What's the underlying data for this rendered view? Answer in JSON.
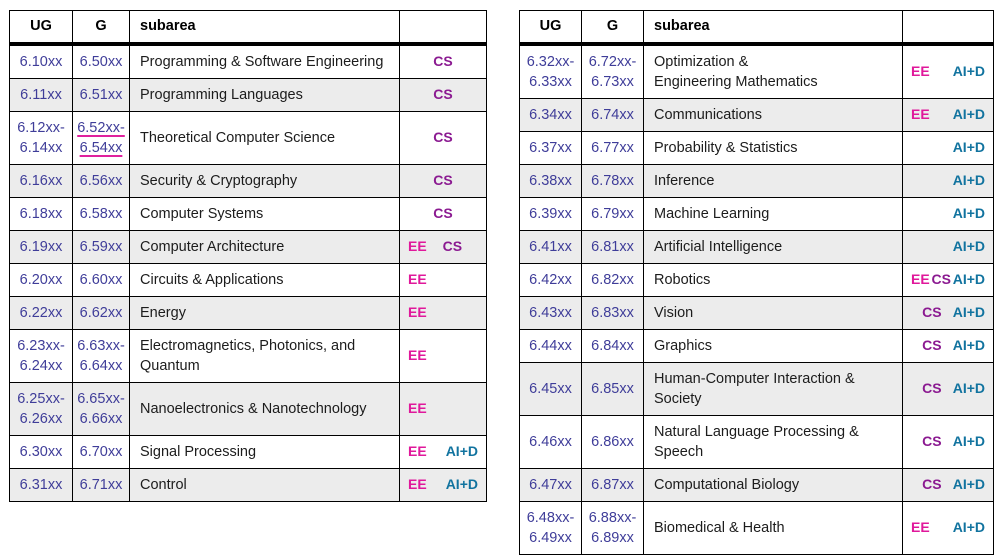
{
  "colors": {
    "number": "#3f3d99",
    "ee": "#e0189b",
    "cs": "#8b1a91",
    "aid": "#11739f",
    "row_alt": "#ececec",
    "border": "#000000",
    "text": "#1c1c1c",
    "link_underline": "#e0219e"
  },
  "tag_labels": {
    "ee": "EE",
    "cs": "CS",
    "aid": "AI+D"
  },
  "tables": [
    {
      "id": "left",
      "headers": {
        "ug": "UG",
        "g": "G",
        "subarea": "subarea",
        "tags": ""
      },
      "rows": [
        {
          "ug": "6.10xx",
          "g": "6.50xx",
          "subarea": "Programming & Software Engineering",
          "tags": [
            "CS"
          ]
        },
        {
          "ug": "6.11xx",
          "g": "6.51xx",
          "subarea": "Programming Languages",
          "tags": [
            "CS"
          ]
        },
        {
          "ug": "6.12xx-\n6.14xx",
          "g": "6.52xx-\n6.54xx",
          "g_link": true,
          "subarea": "Theoretical Computer Science",
          "tags": [
            "CS"
          ]
        },
        {
          "ug": "6.16xx",
          "g": "6.56xx",
          "subarea": "Security & Cryptography",
          "tags": [
            "CS"
          ]
        },
        {
          "ug": "6.18xx",
          "g": "6.58xx",
          "subarea": "Computer Systems",
          "tags": [
            "CS"
          ]
        },
        {
          "ug": "6.19xx",
          "g": "6.59xx",
          "subarea": "Computer Architecture",
          "tags": [
            "EE",
            "CS"
          ]
        },
        {
          "ug": "6.20xx",
          "g": "6.60xx",
          "subarea": "Circuits & Applications",
          "tags": [
            "EE"
          ]
        },
        {
          "ug": "6.22xx",
          "g": "6.62xx",
          "subarea": "Energy",
          "tags": [
            "EE"
          ]
        },
        {
          "ug": "6.23xx-\n6.24xx",
          "g": "6.63xx-\n6.64xx",
          "subarea": "Electromagnetics, Photonics, and Quantum",
          "tags": [
            "EE"
          ]
        },
        {
          "ug": "6.25xx-\n6.26xx",
          "g": "6.65xx-\n6.66xx",
          "subarea": "Nanoelectronics & Nanotechnology",
          "tags": [
            "EE"
          ]
        },
        {
          "ug": "6.30xx",
          "g": "6.70xx",
          "subarea": "Signal Processing",
          "tags": [
            "EE",
            "AI+D"
          ]
        },
        {
          "ug": "6.31xx",
          "g": "6.71xx",
          "subarea": "Control",
          "tags": [
            "EE",
            "AI+D"
          ]
        }
      ]
    },
    {
      "id": "right",
      "headers": {
        "ug": "UG",
        "g": "G",
        "subarea": "subarea",
        "tags": ""
      },
      "rows": [
        {
          "ug": "6.32xx-\n6.33xx",
          "g": "6.72xx-\n6.73xx",
          "subarea": "Optimization &\nEngineering Mathematics",
          "tags": [
            "EE",
            "AI+D"
          ]
        },
        {
          "ug": "6.34xx",
          "g": "6.74xx",
          "subarea": "Communications",
          "tags": [
            "EE",
            "AI+D"
          ]
        },
        {
          "ug": "6.37xx",
          "g": "6.77xx",
          "subarea": "Probability & Statistics",
          "tags": [
            "AI+D"
          ]
        },
        {
          "ug": "6.38xx",
          "g": "6.78xx",
          "subarea": "Inference",
          "tags": [
            "AI+D"
          ]
        },
        {
          "ug": "6.39xx",
          "g": "6.79xx",
          "subarea": "Machine Learning",
          "tags": [
            "AI+D"
          ]
        },
        {
          "ug": "6.41xx",
          "g": "6.81xx",
          "subarea": "Artificial Intelligence",
          "tags": [
            "AI+D"
          ]
        },
        {
          "ug": "6.42xx",
          "g": "6.82xx",
          "subarea": "Robotics",
          "tags": [
            "EE",
            "CS",
            "AI+D"
          ]
        },
        {
          "ug": "6.43xx",
          "g": "6.83xx",
          "subarea": "Vision",
          "tags": [
            "CS",
            "AI+D"
          ]
        },
        {
          "ug": "6.44xx",
          "g": "6.84xx",
          "subarea": "Graphics",
          "tags": [
            "CS",
            "AI+D"
          ]
        },
        {
          "ug": "6.45xx",
          "g": "6.85xx",
          "subarea": "Human-Computer Interaction & Society",
          "tags": [
            "CS",
            "AI+D"
          ]
        },
        {
          "ug": "6.46xx",
          "g": "6.86xx",
          "subarea": "Natural Language Processing & Speech",
          "tags": [
            "CS",
            "AI+D"
          ]
        },
        {
          "ug": "6.47xx",
          "g": "6.87xx",
          "subarea": "Computational Biology",
          "tags": [
            "CS",
            "AI+D"
          ]
        },
        {
          "ug": "6.48xx-\n6.49xx",
          "g": "6.88xx-\n6.89xx",
          "subarea": "Biomedical & Health",
          "tags": [
            "EE",
            "AI+D"
          ]
        }
      ]
    }
  ]
}
